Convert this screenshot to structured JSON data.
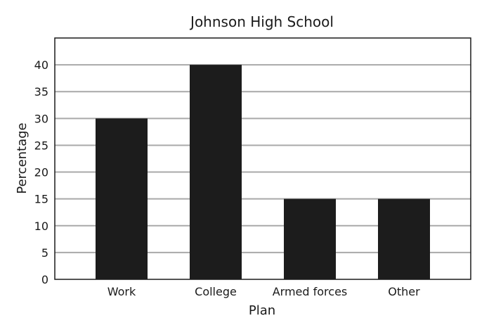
{
  "chart_data": {
    "type": "bar",
    "title": "Johnson High School",
    "xlabel": "Plan",
    "ylabel": "Percentage",
    "categories": [
      "Work",
      "College",
      "Armed forces",
      "Other"
    ],
    "values": [
      30,
      40,
      15,
      15
    ],
    "ylim": [
      0,
      45
    ],
    "yticks": [
      0,
      5,
      10,
      15,
      20,
      25,
      30,
      35,
      40
    ],
    "grid": true,
    "bar_color": "#1c1c1c",
    "grid_color": "#a9a9a9"
  }
}
